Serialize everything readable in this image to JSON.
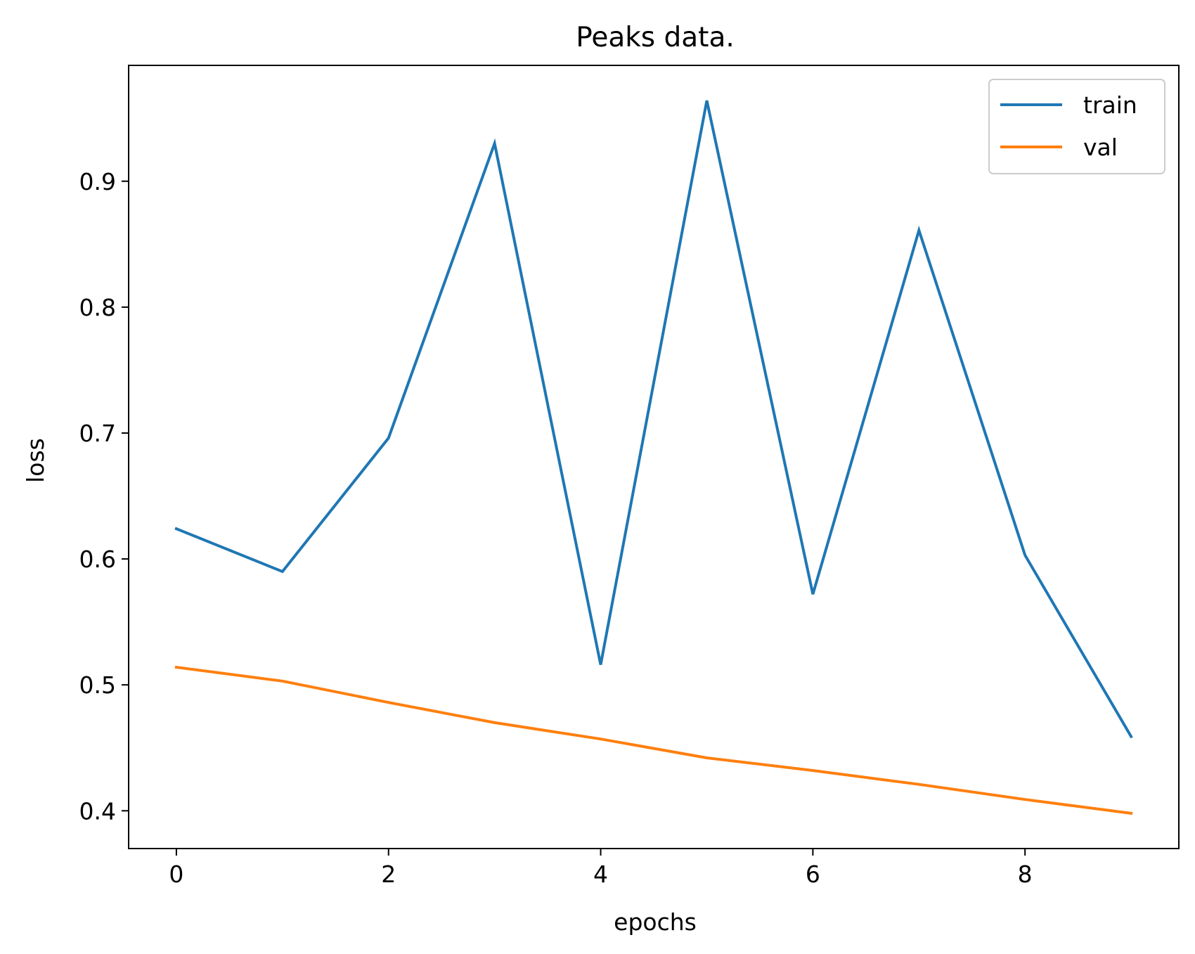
{
  "chart_data": {
    "type": "line",
    "title": "Peaks data.",
    "xlabel": "epochs",
    "ylabel": "loss",
    "x": [
      0,
      1,
      2,
      3,
      4,
      5,
      6,
      7,
      8,
      9
    ],
    "series": [
      {
        "name": "train",
        "color": "#1f77b4",
        "values": [
          0.624,
          0.59,
          0.696,
          0.93,
          0.516,
          0.964,
          0.572,
          0.861,
          0.603,
          0.459
        ]
      },
      {
        "name": "val",
        "color": "#ff7f0e",
        "values": [
          0.514,
          0.503,
          0.486,
          0.47,
          0.457,
          0.442,
          0.432,
          0.421,
          0.409,
          0.398
        ]
      }
    ],
    "xlim": [
      -0.45,
      9.45
    ],
    "ylim": [
      0.37,
      0.992
    ],
    "xticks": [
      0,
      2,
      4,
      6,
      8
    ],
    "xtick_labels": [
      "0",
      "2",
      "4",
      "6",
      "8"
    ],
    "yticks": [
      0.4,
      0.5,
      0.6,
      0.7,
      0.8,
      0.9
    ],
    "ytick_labels": [
      "0.4",
      "0.5",
      "0.6",
      "0.7",
      "0.8",
      "0.9"
    ],
    "grid": false,
    "legend_position": "top-right"
  }
}
